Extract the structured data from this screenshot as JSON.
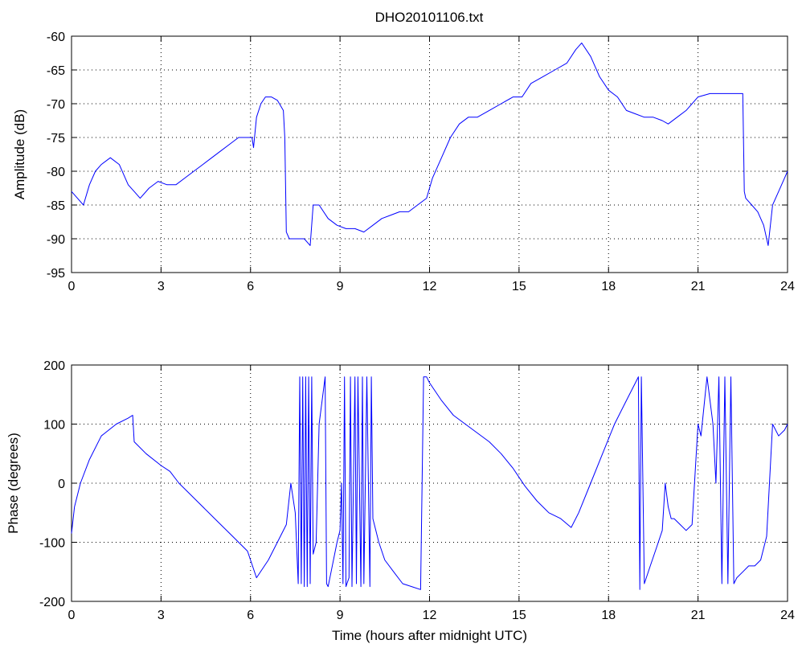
{
  "chart_data": [
    {
      "type": "line",
      "title": "DHO20101106.txt",
      "xlabel": "",
      "ylabel": "Amplitude (dB)",
      "xlim": [
        0,
        24
      ],
      "ylim": [
        -95,
        -60
      ],
      "xticks": [
        0,
        3,
        6,
        9,
        12,
        15,
        18,
        21,
        24
      ],
      "yticks": [
        -95,
        -90,
        -85,
        -80,
        -75,
        -70,
        -65,
        -60
      ],
      "grid": true,
      "color": "#0000ff",
      "series": [
        {
          "x": [
            0,
            0.2,
            0.4,
            0.6,
            0.8,
            1.0,
            1.3,
            1.6,
            1.9,
            2.1,
            2.3,
            2.6,
            2.9,
            3.2,
            3.5,
            3.8,
            4.1,
            4.4,
            4.7,
            5.0,
            5.3,
            5.6,
            5.9,
            6.05,
            6.1,
            6.2,
            6.35,
            6.5,
            6.7,
            6.9,
            7.1,
            7.15,
            7.2,
            7.3,
            7.5,
            7.8,
            8.0,
            8.1,
            8.3,
            8.6,
            8.9,
            9.2,
            9.5,
            9.8,
            10.1,
            10.4,
            10.7,
            11.0,
            11.3,
            11.6,
            11.9,
            12.1,
            12.4,
            12.7,
            13.0,
            13.3,
            13.6,
            14.0,
            14.4,
            14.8,
            15.1,
            15.4,
            15.8,
            16.2,
            16.6,
            16.9,
            17.1,
            17.4,
            17.7,
            18.0,
            18.3,
            18.6,
            18.9,
            19.2,
            19.5,
            19.8,
            20.0,
            20.3,
            20.6,
            21.0,
            21.4,
            21.8,
            22.2,
            22.5,
            22.55,
            22.6,
            22.8,
            23.0,
            23.2,
            23.35,
            23.5,
            23.7,
            23.9,
            24.0
          ],
          "y": [
            -83,
            -84,
            -85,
            -82,
            -80,
            -79,
            -78,
            -79,
            -82,
            -83,
            -84,
            -82.5,
            -81.5,
            -82,
            -82,
            -81,
            -80,
            -79,
            -78,
            -77,
            -76,
            -75,
            -75,
            -75,
            -76.5,
            -72,
            -70,
            -69,
            -69,
            -69.5,
            -71,
            -75,
            -89,
            -90,
            -90,
            -90,
            -91,
            -85,
            -85,
            -87,
            -88,
            -88.5,
            -88.5,
            -89,
            -88,
            -87,
            -86.5,
            -86,
            -86,
            -85,
            -84,
            -81,
            -78,
            -75,
            -73,
            -72,
            -72,
            -71,
            -70,
            -69,
            -69,
            -67,
            -66,
            -65,
            -64,
            -62,
            -61,
            -63,
            -66,
            -68,
            -69,
            -71,
            -71.5,
            -72,
            -72,
            -72.5,
            -73,
            -72,
            -71,
            -69,
            -68.5,
            -68.5,
            -68.5,
            -68.5,
            -83,
            -84,
            -85,
            -86,
            -88,
            -91,
            -85,
            -83,
            -81,
            -80
          ]
        }
      ]
    },
    {
      "type": "line",
      "title": "",
      "xlabel": "Time (hours after midnight UTC)",
      "ylabel": "Phase (degrees)",
      "xlim": [
        0,
        24
      ],
      "ylim": [
        -200,
        200
      ],
      "xticks": [
        0,
        3,
        6,
        9,
        12,
        15,
        18,
        21,
        24
      ],
      "yticks": [
        -200,
        -100,
        0,
        100,
        200
      ],
      "grid": true,
      "color": "#0000ff",
      "series": [
        {
          "x": [
            0,
            0.1,
            0.3,
            0.6,
            1.0,
            1.5,
            1.9,
            2.05,
            2.1,
            2.5,
            3.0,
            3.3,
            3.6,
            4.2,
            4.8,
            5.4,
            5.9,
            6.2,
            6.6,
            7.0,
            7.2,
            7.35,
            7.5,
            7.6,
            7.65,
            7.7,
            7.75,
            7.8,
            7.85,
            7.9,
            7.95,
            8.0,
            8.05,
            8.1,
            8.2,
            8.3,
            8.5,
            8.55,
            8.6,
            8.7,
            8.9,
            9.0,
            9.05,
            9.1,
            9.15,
            9.2,
            9.3,
            9.35,
            9.4,
            9.5,
            9.55,
            9.6,
            9.7,
            9.75,
            9.8,
            9.9,
            10.0,
            10.05,
            10.1,
            10.2,
            10.3,
            10.5,
            10.8,
            11.1,
            11.4,
            11.7,
            11.8,
            11.85,
            11.9,
            12.0,
            12.4,
            12.8,
            13.2,
            13.6,
            14.0,
            14.4,
            14.8,
            15.2,
            15.6,
            16.0,
            16.4,
            16.75,
            17.0,
            17.4,
            17.8,
            18.2,
            18.6,
            18.9,
            19.0,
            19.05,
            19.1,
            19.2,
            19.4,
            19.6,
            19.8,
            19.9,
            20.0,
            20.1,
            20.2,
            20.4,
            20.6,
            20.8,
            21.0,
            21.1,
            21.3,
            21.4,
            21.5,
            21.6,
            21.7,
            21.8,
            21.9,
            22.0,
            22.1,
            22.2,
            22.3,
            22.5,
            22.7,
            22.9,
            23.1,
            23.3,
            23.5,
            23.7,
            23.9,
            24.0
          ],
          "y": [
            -85,
            -40,
            0,
            40,
            80,
            100,
            110,
            115,
            70,
            50,
            30,
            20,
            0,
            -30,
            -60,
            -90,
            -115,
            -160,
            -130,
            -90,
            -70,
            0,
            -50,
            -170,
            180,
            -170,
            180,
            -175,
            180,
            -175,
            180,
            -170,
            180,
            -120,
            -100,
            100,
            180,
            -170,
            -175,
            -150,
            -100,
            -80,
            0,
            -170,
            180,
            -175,
            -160,
            180,
            -175,
            180,
            -170,
            180,
            -175,
            180,
            -170,
            180,
            -175,
            180,
            -60,
            -80,
            -100,
            -130,
            -150,
            -170,
            -175,
            -180,
            180,
            180,
            180,
            170,
            140,
            115,
            100,
            85,
            70,
            50,
            25,
            -5,
            -30,
            -50,
            -60,
            -75,
            -50,
            0,
            50,
            100,
            140,
            170,
            180,
            -180,
            180,
            -170,
            -140,
            -110,
            -80,
            0,
            -40,
            -60,
            -60,
            -70,
            -80,
            -70,
            100,
            80,
            180,
            140,
            100,
            0,
            180,
            -170,
            180,
            -170,
            180,
            -170,
            -160,
            -150,
            -140,
            -140,
            -130,
            -90,
            100,
            80,
            90,
            100
          ]
        }
      ]
    }
  ]
}
